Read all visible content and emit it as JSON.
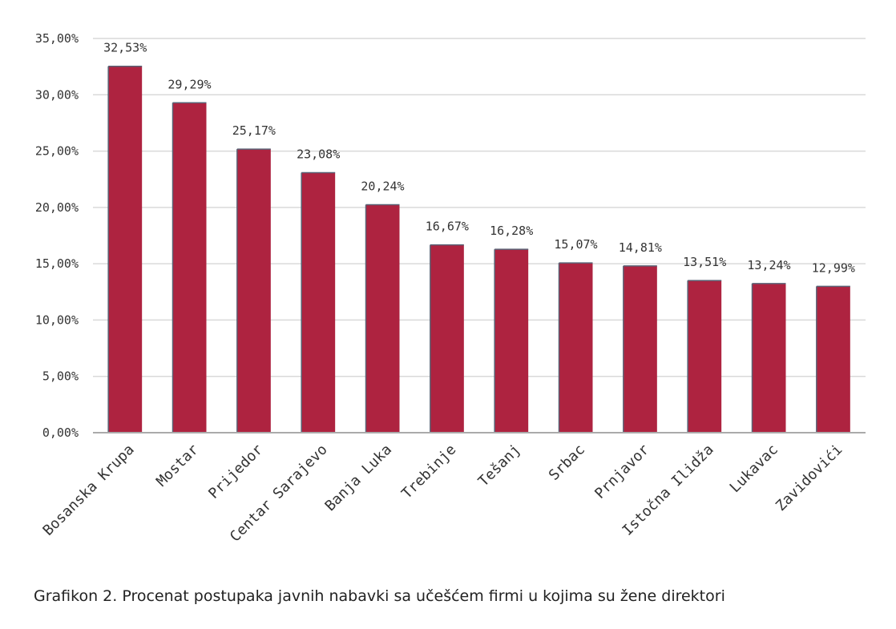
{
  "caption": "Grafikon 2. Procenat postupaka javnih nabavki sa učešćem firmi u kojima su žene direktori",
  "chart_data": {
    "type": "bar",
    "title": "",
    "xlabel": "",
    "ylabel": "",
    "categories": [
      "Bosanska Krupa",
      "Mostar",
      "Prijedor",
      "Centar Sarajevo",
      "Banja Luka",
      "Trebinje",
      "Tešanj",
      "Srbac",
      "Prnjavor",
      "Istočna Ilidža",
      "Lukavac",
      "Zavidovići"
    ],
    "values": [
      32.53,
      29.29,
      25.17,
      23.08,
      20.24,
      16.67,
      16.28,
      15.07,
      14.81,
      13.51,
      13.24,
      12.99
    ],
    "value_labels": [
      "32,53%",
      "29,29%",
      "25,17%",
      "23,08%",
      "20,24%",
      "16,67%",
      "16,28%",
      "15,07%",
      "14,81%",
      "13,51%",
      "13,24%",
      "12,99%"
    ],
    "ylim": [
      0,
      35
    ],
    "yticks": [
      0,
      5,
      10,
      15,
      20,
      25,
      30,
      35
    ],
    "ytick_labels": [
      "0,00%",
      "5,00%",
      "10,00%",
      "15,00%",
      "20,00%",
      "25,00%",
      "30,00%",
      "35,00%"
    ],
    "grid": true,
    "bar_color": "#ae2340",
    "bar_edge_color": "#5a6275",
    "grid_color": "#d9d9d9",
    "axis_color": "#aaaaaa"
  }
}
